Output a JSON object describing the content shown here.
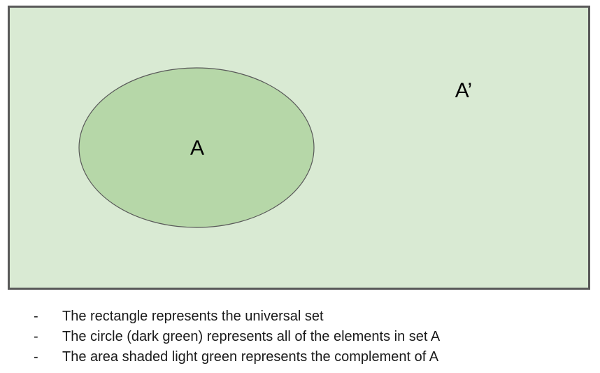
{
  "diagram": {
    "universal_set_fill": "#d9ead3",
    "universal_set_border": "#595959",
    "set_a_fill": "#b6d7a8",
    "set_a_border": "#595959",
    "set_a_label": "A",
    "complement_label": "A’"
  },
  "notes": {
    "bullet": "-",
    "items": [
      "The rectangle represents the universal set",
      "The circle (dark green) represents all of the elements in set A",
      "The area shaded light green represents the complement of A"
    ]
  }
}
